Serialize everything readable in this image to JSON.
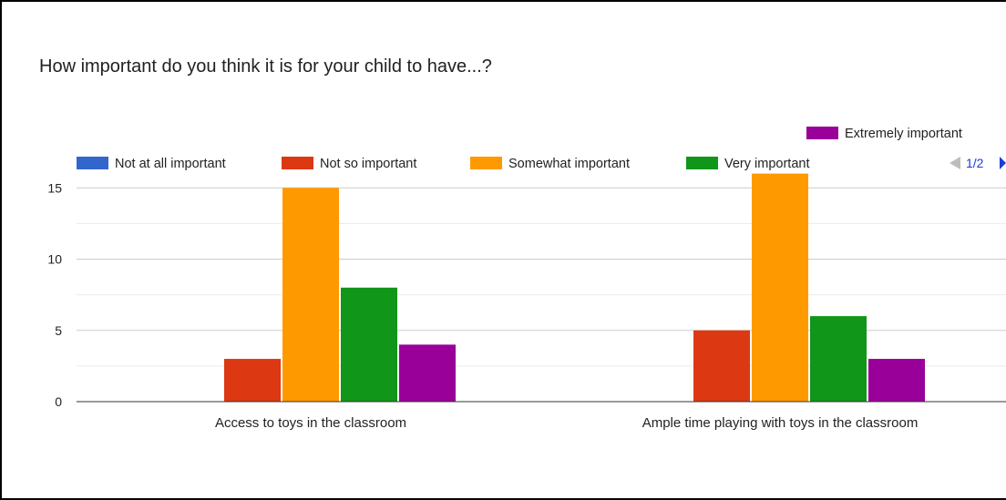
{
  "title": "How important do you think it is for your child to have...?",
  "legend": {
    "pager": "1/2"
  },
  "colors": {
    "Not at all important": "#3366cc",
    "Not so important": "#dc3912",
    "Somewhat important": "#ff9900",
    "Very important": "#109618",
    "Extremely important": "#990099"
  },
  "chart_data": {
    "type": "bar",
    "title": "How important do you think it is for your child to have...?",
    "categories": [
      "Access to toys in the classroom",
      "Ample time playing with toys in the classroom"
    ],
    "series": [
      {
        "name": "Not at all important",
        "values": [
          0,
          0
        ]
      },
      {
        "name": "Not so important",
        "values": [
          3,
          5
        ]
      },
      {
        "name": "Somewhat important",
        "values": [
          15,
          16
        ]
      },
      {
        "name": "Very important",
        "values": [
          8,
          6
        ]
      },
      {
        "name": "Extremely important",
        "values": [
          4,
          3
        ]
      }
    ],
    "yticks": [
      0,
      5,
      10,
      15
    ],
    "ylim": [
      0,
      15.5
    ],
    "grid": true,
    "legend_position": "top"
  }
}
